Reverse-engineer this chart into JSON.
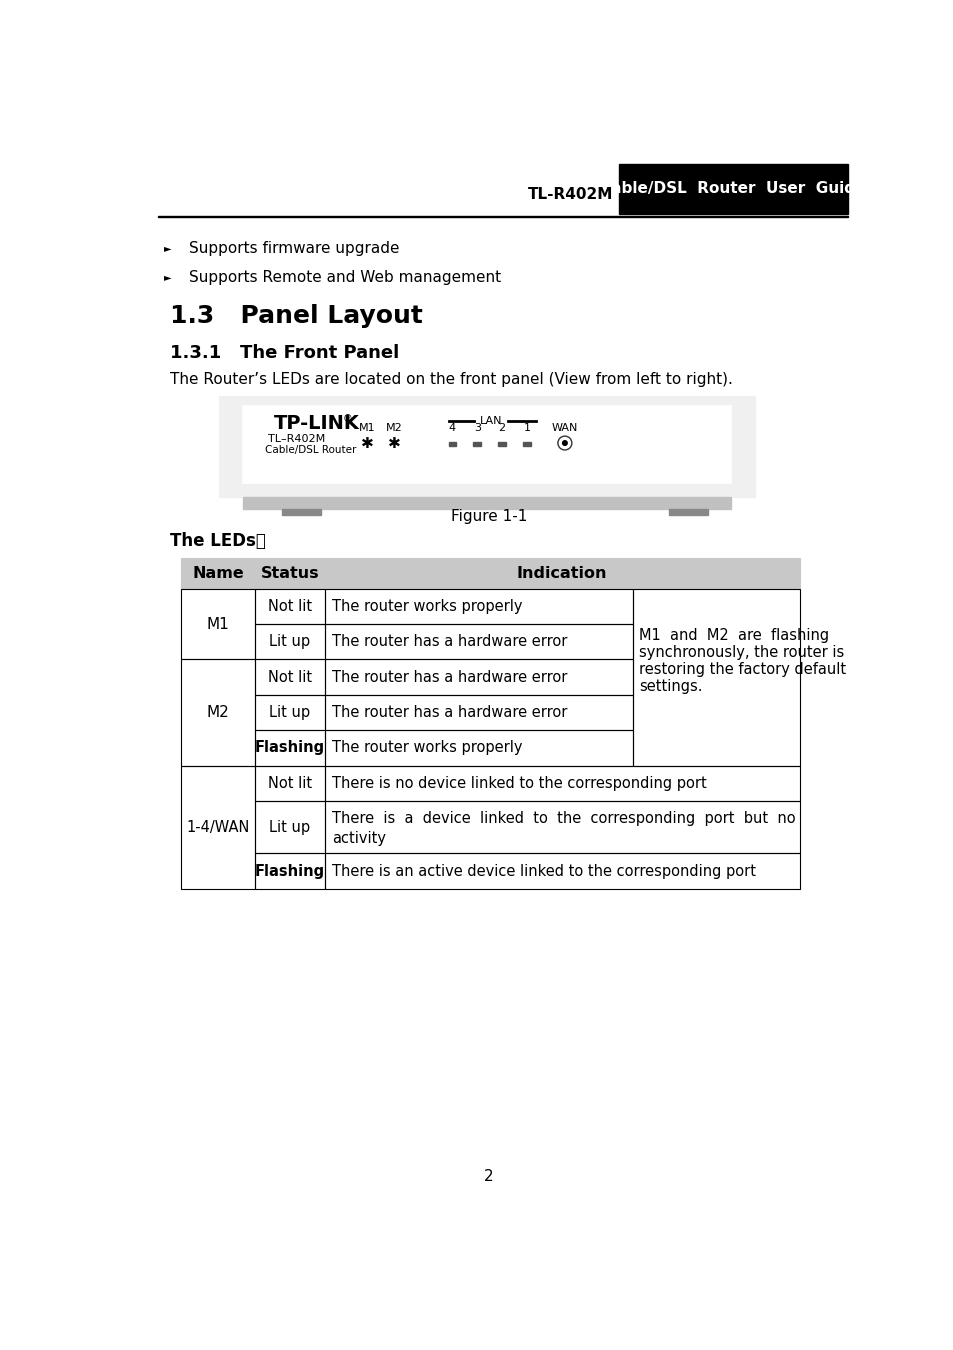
{
  "page_bg": "#ffffff",
  "header_left_text": "TL-R402M",
  "header_right_text": "Cable/DSL  Router  User  Guide",
  "bullet1": "Supports firmware upgrade",
  "bullet2": "Supports Remote and Web management",
  "section_title": "1.3   Panel Layout",
  "subsection_title": "1.3.1   The Front Panel",
  "body_text": "The Router’s LEDs are located on the front panel (View from left to right).",
  "figure_caption": "Figure 1-1",
  "leds_label": "The LEDs：",
  "table_header_bg": "#c8c8c8",
  "col_name": "Name",
  "col_status": "Status",
  "col_indication": "Indication",
  "page_number": "2",
  "merged_line1": "M1  and  M2  are  flashing",
  "merged_line2": "synchronously, the router is",
  "merged_line3": "restoring the factory default",
  "merged_line4": "settings.",
  "wan_lit_line1": "There  is  a  device  linked  to  the  corresponding  port  but  no",
  "wan_lit_line2": "activity"
}
